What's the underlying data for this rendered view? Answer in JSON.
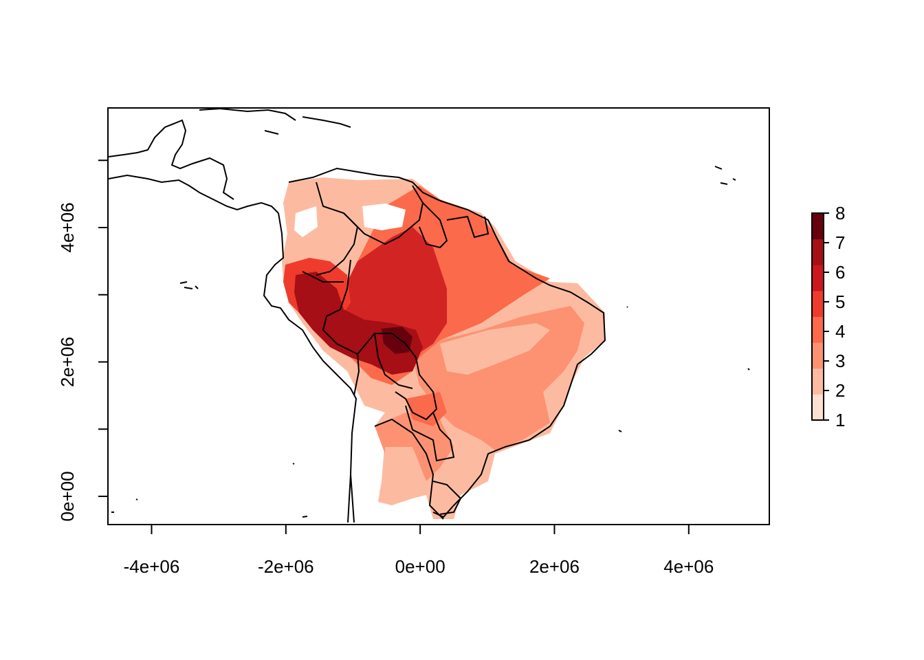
{
  "chart_data": {
    "type": "heatmap",
    "title": "",
    "xlabel": "",
    "ylabel": "",
    "x_ticks": [
      {
        "value": -4000000,
        "label": "-4e+06"
      },
      {
        "value": -2000000,
        "label": "-2e+06"
      },
      {
        "value": 0,
        "label": "0e+00"
      },
      {
        "value": 2000000,
        "label": "2e+06"
      },
      {
        "value": 4000000,
        "label": "4e+06"
      }
    ],
    "y_ticks": [
      {
        "value": 0,
        "label": "0e+00"
      },
      {
        "value": 1000000,
        "label": ""
      },
      {
        "value": 2000000,
        "label": "2e+06"
      },
      {
        "value": 3000000,
        "label": ""
      },
      {
        "value": 4000000,
        "label": "4e+06"
      },
      {
        "value": 5000000,
        "label": ""
      }
    ],
    "xlim": [
      -4650000,
      5200000
    ],
    "ylim": [
      -420000,
      5780000
    ],
    "legend": {
      "placement": "right",
      "min": 1,
      "max": 8,
      "labels": [
        "1",
        "2",
        "3",
        "4",
        "5",
        "6",
        "7",
        "8"
      ],
      "colors": [
        "#fee0d2",
        "#fcbba1",
        "#fc9272",
        "#fb6a4a",
        "#ef3b2c",
        "#cb181d",
        "#a50f15",
        "#67000d"
      ]
    },
    "raster_description_values": {
      "eastern_brazil": 2,
      "central_amazon": 5,
      "western_amazon_peru": 6.5,
      "hotspot_peak": 8,
      "guianas": 4
    }
  }
}
